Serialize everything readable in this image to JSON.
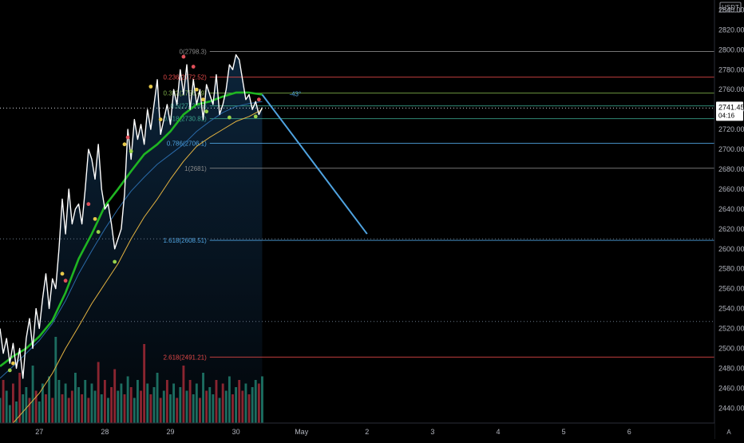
{
  "chart_data": {
    "type": "line",
    "title": "",
    "currency": "USDT",
    "ylim": [
      2425,
      2850
    ],
    "y_ticks": [
      2440,
      2460,
      2480,
      2500,
      2520,
      2540,
      2560,
      2580,
      2600,
      2620,
      2640,
      2660,
      2680,
      2700,
      2720,
      2740,
      2760,
      2780,
      2800,
      2820,
      2840
    ],
    "x_range": [
      26.4,
      37.3
    ],
    "x_ticks": [
      {
        "x": 27.0,
        "label": "27"
      },
      {
        "x": 28.0,
        "label": "28"
      },
      {
        "x": 29.0,
        "label": "29"
      },
      {
        "x": 30.0,
        "label": "30"
      },
      {
        "x": 31.0,
        "label": "May"
      },
      {
        "x": 32.0,
        "label": "2"
      },
      {
        "x": 33.0,
        "label": "3"
      },
      {
        "x": 34.0,
        "label": "4"
      },
      {
        "x": 35.0,
        "label": "5"
      },
      {
        "x": 36.0,
        "label": "6"
      }
    ],
    "current_price": {
      "value": "2741.45",
      "countdown": "04:16"
    },
    "series": [
      {
        "role": "price",
        "color": "#ffffff",
        "x": [
          26.4,
          26.45,
          26.5,
          26.55,
          26.6,
          26.65,
          26.7,
          26.75,
          26.8,
          26.85,
          26.9,
          26.95,
          27.0,
          27.05,
          27.1,
          27.15,
          27.2,
          27.25,
          27.3,
          27.35,
          27.4,
          27.45,
          27.5,
          27.55,
          27.6,
          27.65,
          27.7,
          27.75,
          27.8,
          27.85,
          27.9,
          27.95,
          28.0,
          28.05,
          28.1,
          28.15,
          28.2,
          28.25,
          28.3,
          28.35,
          28.4,
          28.45,
          28.5,
          28.55,
          28.6,
          28.65,
          28.7,
          28.75,
          28.8,
          28.85,
          28.9,
          28.95,
          29.0,
          29.05,
          29.1,
          29.15,
          29.2,
          29.25,
          29.3,
          29.35,
          29.4,
          29.45,
          29.5,
          29.55,
          29.6,
          29.65,
          29.7,
          29.75,
          29.8,
          29.85,
          29.9,
          29.95,
          30.0,
          30.05,
          30.1,
          30.15,
          30.2,
          30.25,
          30.3,
          30.35,
          30.4
        ],
        "values": [
          2520,
          2495,
          2510,
          2485,
          2505,
          2480,
          2500,
          2470,
          2510,
          2530,
          2500,
          2540,
          2520,
          2550,
          2575,
          2540,
          2570,
          2560,
          2600,
          2650,
          2615,
          2660,
          2625,
          2640,
          2645,
          2625,
          2660,
          2700,
          2690,
          2670,
          2705,
          2660,
          2640,
          2645,
          2625,
          2600,
          2610,
          2620,
          2655,
          2720,
          2690,
          2730,
          2710,
          2725,
          2705,
          2740,
          2720,
          2745,
          2770,
          2715,
          2730,
          2745,
          2725,
          2760,
          2745,
          2780,
          2755,
          2785,
          2740,
          2770,
          2745,
          2760,
          2730,
          2765,
          2755,
          2745,
          2775,
          2735,
          2745,
          2760,
          2785,
          2780,
          2795,
          2790,
          2770,
          2750,
          2755,
          2740,
          2748,
          2735,
          2742
        ]
      },
      {
        "role": "fast-ma",
        "color": "#1fb522",
        "x": [
          26.4,
          26.6,
          26.8,
          27.0,
          27.2,
          27.4,
          27.6,
          27.8,
          28.0,
          28.2,
          28.4,
          28.6,
          28.8,
          29.0,
          29.2,
          29.4,
          29.6,
          29.8,
          30.0,
          30.2,
          30.3,
          30.4
        ],
        "values": [
          2482,
          2492,
          2500,
          2512,
          2528,
          2556,
          2590,
          2615,
          2643,
          2660,
          2678,
          2695,
          2705,
          2718,
          2735,
          2745,
          2748,
          2753,
          2757,
          2757,
          2756,
          2755
        ]
      },
      {
        "role": "slow-ma",
        "color": "#e3b341",
        "x": [
          26.6,
          26.8,
          27.0,
          27.2,
          27.4,
          27.6,
          27.8,
          28.0,
          28.2,
          28.4,
          28.6,
          28.8,
          29.0,
          29.2,
          29.4,
          29.6,
          29.8,
          30.0,
          30.2,
          30.4
        ],
        "values": [
          2425,
          2440,
          2455,
          2475,
          2500,
          2522,
          2545,
          2565,
          2585,
          2610,
          2632,
          2650,
          2670,
          2688,
          2703,
          2712,
          2720,
          2728,
          2733,
          2740
        ]
      },
      {
        "role": "ema-blue",
        "color": "#2a6aa8",
        "x": [
          26.4,
          26.6,
          26.8,
          27.0,
          27.2,
          27.4,
          27.6,
          27.8,
          28.0,
          28.2,
          28.4,
          28.6,
          28.8,
          29.0,
          29.2,
          29.4,
          29.6,
          29.8,
          30.0,
          30.2,
          30.4
        ],
        "values": [
          2470,
          2482,
          2495,
          2508,
          2525,
          2548,
          2575,
          2598,
          2620,
          2640,
          2658,
          2672,
          2685,
          2695,
          2705,
          2718,
          2728,
          2737,
          2743,
          2746,
          2748
        ]
      }
    ],
    "fib_levels": [
      {
        "label": "0(2798.3)",
        "value": 2798.3,
        "color": "#8a8a8a"
      },
      {
        "label": "0.236(2772.52)",
        "value": 2772.52,
        "color": "#e04848"
      },
      {
        "label": "0.382(2756.49)",
        "value": 2756.49,
        "color": "#7fb04a"
      },
      {
        "label": "0.5(2743.65)",
        "value": 2743.65,
        "color": "#3aa08a"
      },
      {
        "label": "0.618(2730.81)",
        "value": 2730.81,
        "color": "#3aa08a"
      },
      {
        "label": "0.786(2706.1)",
        "value": 2706.1,
        "color": "#4fa3e0"
      },
      {
        "label": "1(2681)",
        "value": 2681,
        "color": "#8a8a8a"
      },
      {
        "label": "1.618(2608.51)",
        "value": 2608.51,
        "color": "#4fa3e0"
      },
      {
        "label": "2.618(2491.21)",
        "value": 2491.21,
        "color": "#e04848"
      }
    ],
    "fib_x": [
      29.6,
      37.3
    ],
    "dotted_levels": [
      2610,
      2527
    ],
    "projection": {
      "color": "#4fa3e0",
      "points": [
        [
          30.4,
          2755
        ],
        [
          32.0,
          2615
        ]
      ],
      "angle_label": "-43°"
    },
    "shaded_region": {
      "x": [
        26.4,
        30.4
      ],
      "color": "#0e2a44"
    },
    "markers": [
      {
        "x": 26.55,
        "y": 2478,
        "color": "#9ad34a"
      },
      {
        "x": 26.6,
        "y": 2485,
        "color": "#e6c84a"
      },
      {
        "x": 27.35,
        "y": 2575,
        "color": "#e6c84a"
      },
      {
        "x": 27.4,
        "y": 2568,
        "color": "#e0505a"
      },
      {
        "x": 27.75,
        "y": 2645,
        "color": "#e0505a"
      },
      {
        "x": 27.85,
        "y": 2630,
        "color": "#e6c84a"
      },
      {
        "x": 27.9,
        "y": 2617,
        "color": "#9ad34a"
      },
      {
        "x": 28.15,
        "y": 2587,
        "color": "#9ad34a"
      },
      {
        "x": 28.3,
        "y": 2705,
        "color": "#e6c84a"
      },
      {
        "x": 28.35,
        "y": 2712,
        "color": "#e0505a"
      },
      {
        "x": 28.4,
        "y": 2698,
        "color": "#9ad34a"
      },
      {
        "x": 28.7,
        "y": 2763,
        "color": "#e6c84a"
      },
      {
        "x": 28.85,
        "y": 2730,
        "color": "#e6c84a"
      },
      {
        "x": 29.2,
        "y": 2793,
        "color": "#e0505a"
      },
      {
        "x": 29.35,
        "y": 2783,
        "color": "#e0505a"
      },
      {
        "x": 29.4,
        "y": 2760,
        "color": "#e6c84a"
      },
      {
        "x": 29.5,
        "y": 2750,
        "color": "#e6c84a"
      },
      {
        "x": 29.55,
        "y": 2738,
        "color": "#9ad34a"
      },
      {
        "x": 29.9,
        "y": 2732,
        "color": "#9ad34a"
      },
      {
        "x": 30.3,
        "y": 2733,
        "color": "#9ad34a"
      },
      {
        "x": 30.35,
        "y": 2750,
        "color": "#e0505a"
      }
    ],
    "volume": {
      "x_start": 26.4,
      "x_step": 0.05,
      "up_color": "#1c6d60",
      "down_color": "#8a2530",
      "values": [
        35,
        60,
        45,
        25,
        55,
        30,
        70,
        40,
        50,
        35,
        80,
        45,
        30,
        55,
        40,
        65,
        35,
        120,
        60,
        40,
        55,
        35,
        45,
        70,
        50,
        40,
        60,
        35,
        55,
        45,
        85,
        40,
        60,
        35,
        50,
        75,
        45,
        55,
        40,
        65,
        50,
        35,
        60,
        45,
        110,
        55,
        40,
        50,
        70,
        35,
        45,
        60,
        40,
        55,
        35,
        50,
        80,
        45,
        60,
        40,
        55,
        35,
        70,
        45,
        50,
        40,
        60,
        35,
        55,
        45,
        65,
        40,
        50,
        60,
        45,
        55,
        40,
        50,
        60,
        55,
        65
      ],
      "up": [
        1,
        0,
        1,
        1,
        0,
        1,
        0,
        1,
        1,
        0,
        1,
        0,
        1,
        1,
        0,
        1,
        0,
        1,
        1,
        0,
        1,
        0,
        0,
        1,
        1,
        0,
        1,
        0,
        1,
        1,
        0,
        1,
        0,
        1,
        0,
        0,
        1,
        1,
        0,
        1,
        0,
        1,
        1,
        0,
        0,
        1,
        0,
        1,
        1,
        0,
        1,
        0,
        1,
        1,
        0,
        1,
        0,
        1,
        0,
        1,
        1,
        0,
        1,
        0,
        1,
        1,
        0,
        1,
        0,
        1,
        1,
        0,
        1,
        0,
        0,
        1,
        0,
        1,
        1,
        0,
        1
      ]
    }
  }
}
